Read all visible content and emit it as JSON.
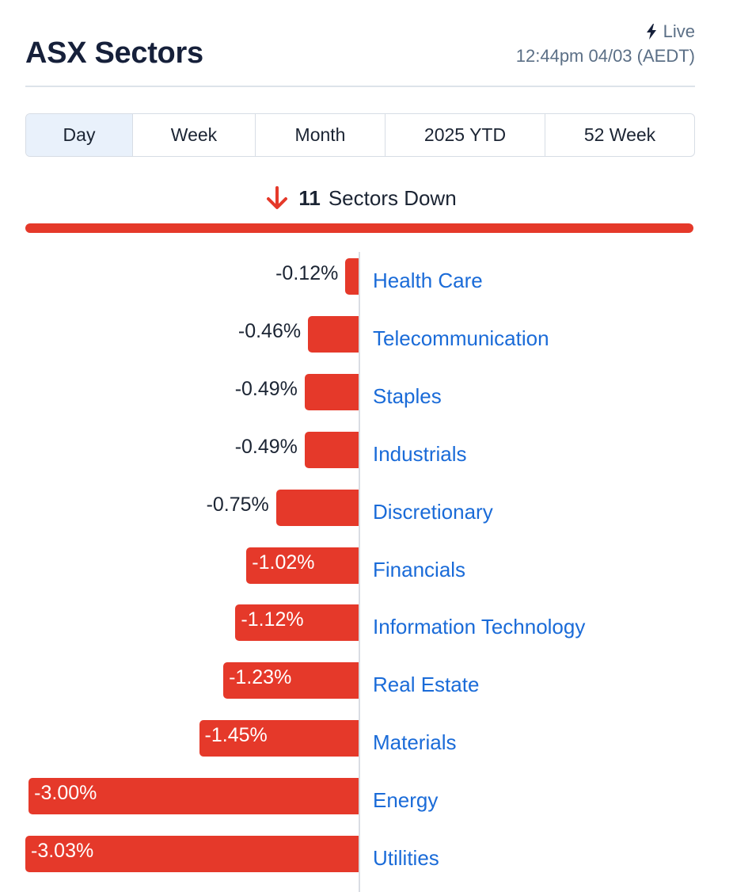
{
  "header": {
    "title": "ASX Sectors",
    "live_label": "Live",
    "timestamp": "12:44pm 04/03 (AEDT)"
  },
  "tabs": [
    {
      "label": "Day",
      "active": true
    },
    {
      "label": "Week",
      "active": false
    },
    {
      "label": "Month",
      "active": false
    },
    {
      "label": "2025 YTD",
      "active": false
    },
    {
      "label": "52 Week",
      "active": false
    }
  ],
  "summary": {
    "count": "11",
    "text": "Sectors Down",
    "direction_icon": "arrow-down-icon",
    "down_fraction": 1.0
  },
  "colors": {
    "negative": "#e5392a",
    "link": "#1a6bd8",
    "text": "#1b2433",
    "muted": "#5b6f86"
  },
  "chart_data": {
    "type": "bar",
    "orientation": "horizontal",
    "categories": [
      "Health Care",
      "Telecommunication",
      "Staples",
      "Industrials",
      "Discretionary",
      "Financials",
      "Information Technology",
      "Real Estate",
      "Materials",
      "Energy",
      "Utilities"
    ],
    "values": [
      -0.12,
      -0.46,
      -0.49,
      -0.49,
      -0.75,
      -1.02,
      -1.12,
      -1.23,
      -1.45,
      -3.0,
      -3.03
    ],
    "labels": [
      "-0.12%",
      "-0.46%",
      "-0.49%",
      "-0.49%",
      "-0.75%",
      "-1.02%",
      "-1.12%",
      "-1.23%",
      "-1.45%",
      "-3.00%",
      "-3.03%"
    ],
    "unit": "%",
    "xlim": [
      -3.03,
      0
    ]
  }
}
